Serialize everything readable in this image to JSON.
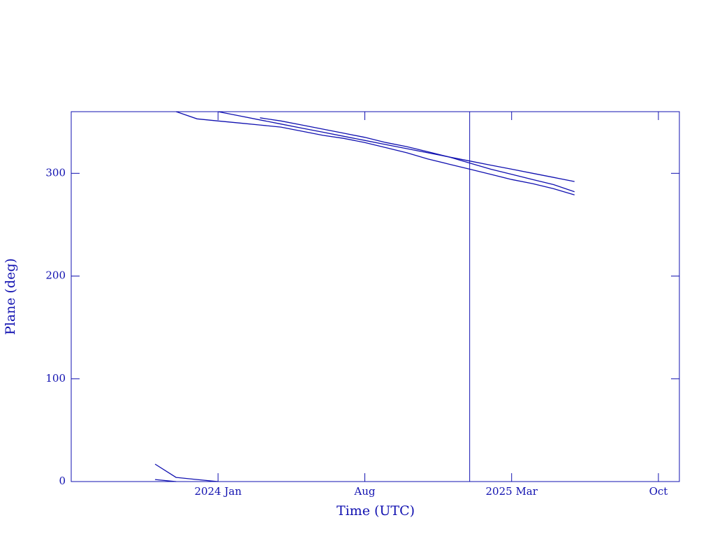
{
  "chart_data": {
    "type": "line",
    "xlabel": "Time (UTC)",
    "ylabel": "Plane (deg)",
    "xlim": [
      "2023-06",
      "2025-11"
    ],
    "ylim": [
      0,
      360
    ],
    "xticks": [
      {
        "value": "2024-01",
        "label": "2024 Jan"
      },
      {
        "value": "2024-08",
        "label": "Aug"
      },
      {
        "value": "2025-03",
        "label": "2025 Mar"
      },
      {
        "value": "2025-10",
        "label": "Oct"
      }
    ],
    "yticks": [
      0,
      100,
      200,
      300
    ],
    "vline": "2025-01",
    "color": "#1010b0",
    "series": [
      {
        "color": "#1010b0",
        "x": [
          "2023-10",
          "2023-11",
          "2023-12",
          "2024-01",
          null,
          "2024-01",
          "2024-02",
          "2024-03",
          "2024-04",
          "2024-05",
          "2024-06",
          "2024-07",
          "2024-08",
          "2024-09",
          "2024-10",
          "2024-11",
          "2024-12",
          "2025-01",
          "2025-02",
          "2025-03",
          "2025-04",
          "2025-05",
          "2025-06"
        ],
        "values": [
          17,
          4,
          2,
          0,
          null,
          360,
          356,
          352,
          348,
          344,
          340,
          336,
          332,
          328,
          324,
          320,
          316,
          312,
          308,
          304,
          300,
          296,
          292
        ]
      },
      {
        "color": "#1010b0",
        "x": [
          "2023-10",
          "2023-11",
          null,
          "2023-11",
          "2023-12",
          "2024-01",
          "2024-02",
          "2024-03",
          "2024-04",
          "2024-05",
          "2024-06",
          "2024-07",
          "2024-08",
          "2024-09",
          "2024-10",
          "2024-11",
          "2024-12",
          "2025-01",
          "2025-02",
          "2025-03",
          "2025-04",
          "2025-05",
          "2025-06"
        ],
        "values": [
          2,
          0,
          null,
          360,
          353,
          351,
          349,
          347,
          345,
          341,
          337,
          334,
          330,
          325,
          320,
          314,
          309,
          304,
          299,
          294,
          290,
          285,
          279
        ]
      },
      {
        "color": "#1010b0",
        "x": [
          "2024-03",
          "2024-04",
          "2024-05",
          "2024-06",
          "2024-07",
          "2024-08",
          "2024-09",
          "2024-10",
          "2024-11",
          "2024-12",
          "2025-01",
          "2025-02",
          "2025-03",
          "2025-04",
          "2025-05",
          "2025-06"
        ],
        "values": [
          354,
          351,
          347,
          343,
          339,
          335,
          330,
          326,
          321,
          316,
          310,
          304,
          299,
          294,
          289,
          282
        ]
      }
    ]
  }
}
